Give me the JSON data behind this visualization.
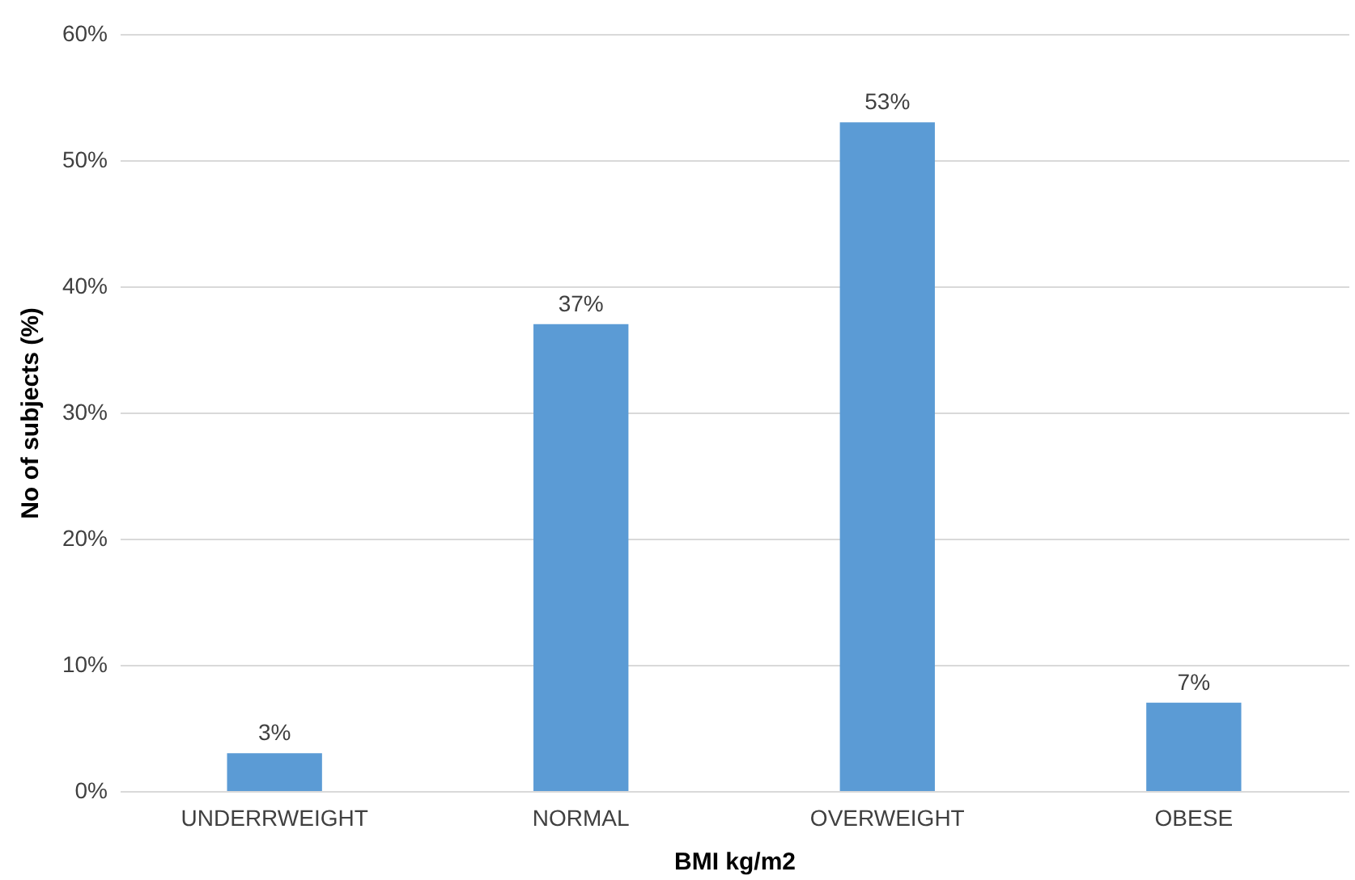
{
  "chart_data": {
    "type": "bar",
    "xlabel": "BMI kg/m2",
    "ylabel": "No of subjects (%)",
    "categories": [
      "UNDERRWEIGHT",
      "NORMAL",
      "OVERWEIGHT",
      "OBESE"
    ],
    "values": [
      3,
      37,
      53,
      7
    ],
    "value_labels": [
      "3%",
      "37%",
      "53%",
      "7%"
    ],
    "color": "#5b9bd5",
    "ylim": [
      0,
      60
    ],
    "yticks": [
      {
        "value": 0,
        "label": "0%"
      },
      {
        "value": 10,
        "label": "10%"
      },
      {
        "value": 20,
        "label": "20%"
      },
      {
        "value": 30,
        "label": "30%"
      },
      {
        "value": 40,
        "label": "40%"
      },
      {
        "value": 50,
        "label": "50%"
      },
      {
        "value": 60,
        "label": "60%"
      }
    ],
    "grid": "y"
  }
}
